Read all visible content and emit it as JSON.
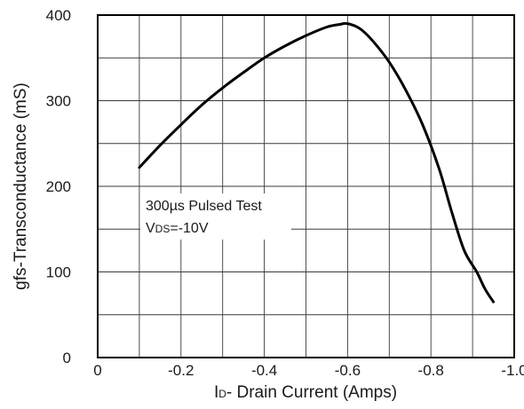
{
  "chart_data": {
    "type": "line",
    "xlabel": "ID- Drain Current (Amps)",
    "xlabel_main": "I",
    "xlabel_sub": "D",
    "xlabel_rest": "- Drain Current (Amps)",
    "ylabel": "gfs-Transconductance (mS)",
    "xlim": [
      0,
      -1.0
    ],
    "ylim": [
      0,
      400
    ],
    "x_ticks": [
      0,
      -0.1,
      -0.2,
      -0.3,
      -0.4,
      -0.5,
      -0.6,
      -0.7,
      -0.8,
      -0.9,
      -1.0
    ],
    "x_tick_labels": [
      "0",
      "-0.2",
      "-0.4",
      "-0.6",
      "-0.8",
      "-1.0"
    ],
    "x_tick_label_values": [
      0,
      -0.2,
      -0.4,
      -0.6,
      -0.8,
      -1.0
    ],
    "y_ticks": [
      0,
      50,
      100,
      150,
      200,
      250,
      300,
      350,
      400
    ],
    "y_tick_labels": [
      "0",
      "100",
      "200",
      "300",
      "400"
    ],
    "y_tick_label_values": [
      0,
      100,
      200,
      300,
      400
    ],
    "grid": true,
    "annotation": {
      "line1": "300µs Pulsed Test",
      "line2_main": "V",
      "line2_sub": "DS",
      "line2_rest": "=-10V"
    },
    "series": [
      {
        "x": [
          -0.1,
          -0.15,
          -0.2,
          -0.25,
          -0.3,
          -0.35,
          -0.4,
          -0.45,
          -0.5,
          -0.55,
          -0.58,
          -0.6,
          -0.63,
          -0.66,
          -0.7,
          -0.74,
          -0.78,
          -0.82,
          -0.85,
          -0.88,
          -0.91,
          -0.93,
          -0.95
        ],
        "y": [
          222,
          248,
          272,
          295,
          315,
          333,
          350,
          364,
          376,
          386,
          389,
          390,
          384,
          370,
          345,
          312,
          272,
          220,
          170,
          125,
          100,
          80,
          65
        ],
        "color": "#000000"
      }
    ]
  }
}
